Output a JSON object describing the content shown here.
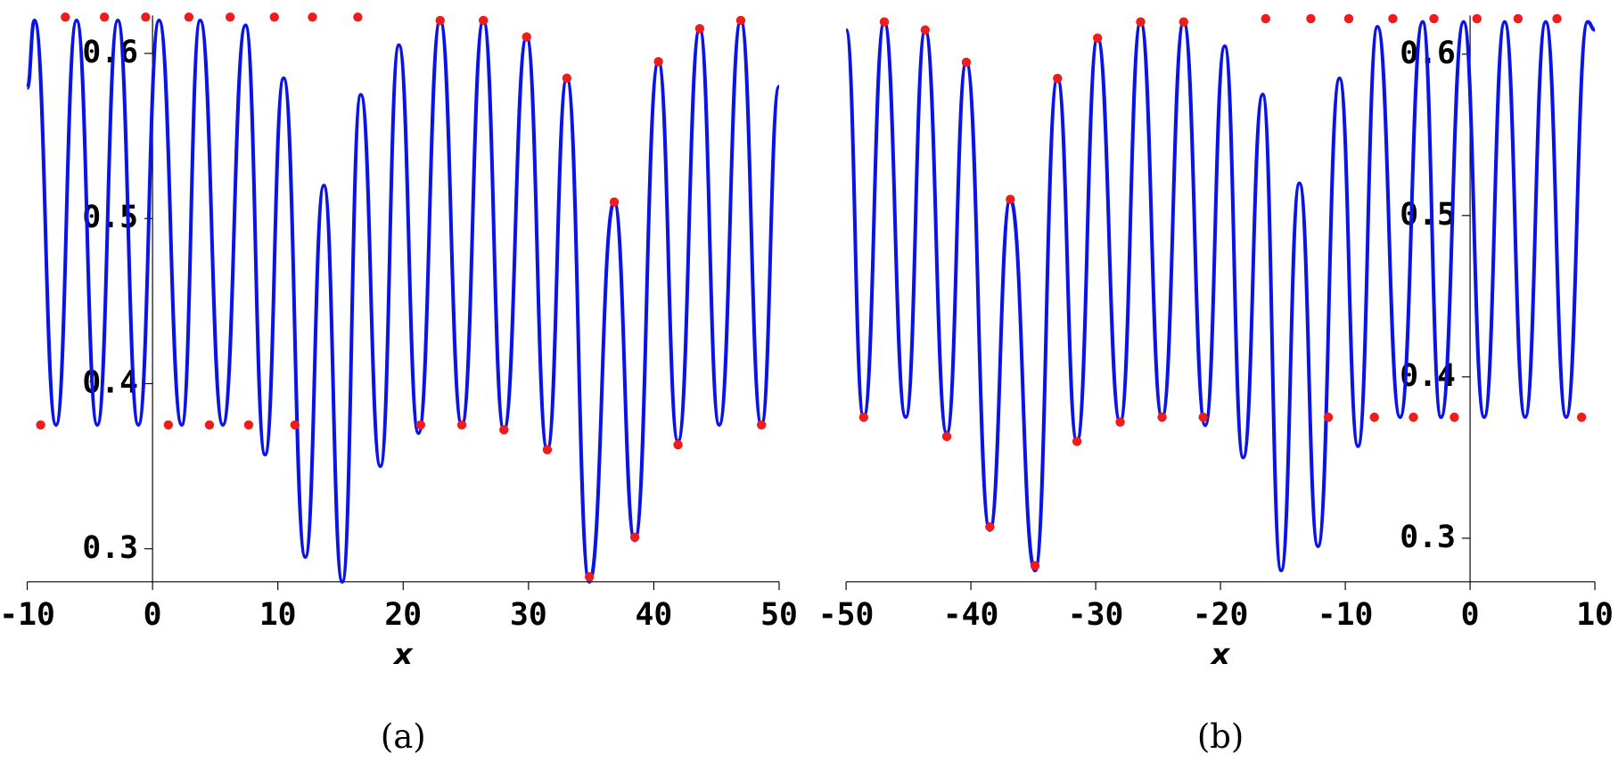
{
  "chart_data": [
    {
      "type": "line",
      "caption": "(a)",
      "x_label": "x",
      "xlim": [
        -10,
        50
      ],
      "xticks": [
        -10,
        0,
        10,
        20,
        30,
        40,
        50
      ],
      "ylim": [
        0.28,
        0.623
      ],
      "yticks": [
        0.3,
        0.4,
        0.5,
        0.6
      ],
      "series": [
        {
          "color": "#0a14e6",
          "x": [
            -10,
            -9.42,
            -7.7,
            -6.06,
            -4.41,
            -2.77,
            -1.13,
            0.52,
            2.33,
            3.8,
            5.61,
            7.42,
            8.98,
            10.46,
            12.19,
            13.67,
            15.14,
            16.62,
            18.18,
            19.66,
            21.22,
            22.95,
            24.68,
            26.4,
            28.04,
            29.85,
            31.5,
            33.06,
            34.86,
            36.84,
            38.48,
            40.37,
            41.93,
            43.66,
            45.22,
            46.94,
            48.59,
            50
          ],
          "values": [
            0.579,
            0.62,
            0.375,
            0.62,
            0.375,
            0.62,
            0.375,
            0.62,
            0.375,
            0.62,
            0.375,
            0.617,
            0.357,
            0.585,
            0.295,
            0.52,
            0.28,
            0.575,
            0.35,
            0.605,
            0.37,
            0.62,
            0.375,
            0.62,
            0.372,
            0.61,
            0.36,
            0.585,
            0.28,
            0.51,
            0.305,
            0.595,
            0.365,
            0.615,
            0.375,
            0.62,
            0.375,
            0.58
          ]
        },
        {
          "color": "#ee1c1c",
          "marker": "circle",
          "x": [
            -8.93,
            -6.96,
            -3.84,
            -0.55,
            1.26,
            2.9,
            4.54,
            6.19,
            7.67,
            9.72,
            11.36,
            12.76,
            16.38,
            21.39,
            22.95,
            24.68,
            26.4,
            28.04,
            29.85,
            31.5,
            33.06,
            34.86,
            36.84,
            38.48,
            40.37,
            41.93,
            43.66,
            46.94,
            48.59
          ],
          "values": [
            0.375,
            0.622,
            0.622,
            0.622,
            0.375,
            0.622,
            0.375,
            0.622,
            0.375,
            0.622,
            0.375,
            0.622,
            0.622,
            0.375,
            0.62,
            0.375,
            0.62,
            0.372,
            0.61,
            0.36,
            0.585,
            0.283,
            0.51,
            0.307,
            0.595,
            0.363,
            0.615,
            0.62,
            0.375
          ]
        }
      ]
    },
    {
      "type": "line",
      "caption": "(b)",
      "x_label": "x",
      "xlim": [
        -50,
        10
      ],
      "xticks": [
        -50,
        -40,
        -30,
        -20,
        -10,
        0,
        10
      ],
      "ylim": [
        0.273,
        0.624
      ],
      "yticks": [
        0.3,
        0.4,
        0.5,
        0.6
      ],
      "series": [
        {
          "color": "#0a14e6",
          "x": [
            -50,
            -48.59,
            -46.94,
            -45.22,
            -43.66,
            -41.93,
            -40.37,
            -38.48,
            -36.84,
            -34.86,
            -33.06,
            -31.5,
            -29.85,
            -28.04,
            -26.4,
            -24.68,
            -22.95,
            -21.22,
            -19.66,
            -18.18,
            -16.62,
            -15.14,
            -13.67,
            -12.19,
            -10.46,
            -8.98,
            -7.42,
            -5.61,
            -3.8,
            -2.33,
            -0.52,
            1.13,
            2.77,
            4.41,
            6.06,
            7.7,
            9.42,
            10
          ],
          "values": [
            0.615,
            0.375,
            0.62,
            0.375,
            0.615,
            0.365,
            0.595,
            0.305,
            0.51,
            0.28,
            0.585,
            0.36,
            0.61,
            0.372,
            0.62,
            0.375,
            0.62,
            0.37,
            0.605,
            0.35,
            0.575,
            0.28,
            0.52,
            0.295,
            0.585,
            0.357,
            0.617,
            0.375,
            0.62,
            0.375,
            0.62,
            0.375,
            0.62,
            0.375,
            0.62,
            0.375,
            0.62,
            0.615
          ]
        },
        {
          "color": "#ee1c1c",
          "marker": "circle",
          "x": [
            -48.59,
            -46.94,
            -43.66,
            -41.93,
            -40.37,
            -38.48,
            -36.84,
            -34.86,
            -33.06,
            -31.5,
            -29.85,
            -28.04,
            -26.4,
            -24.68,
            -22.95,
            -21.39,
            -16.38,
            -12.76,
            -11.36,
            -9.72,
            -7.67,
            -6.19,
            -4.54,
            -2.9,
            -1.26,
            0.55,
            3.84,
            6.96,
            8.93
          ],
          "values": [
            0.375,
            0.62,
            0.615,
            0.363,
            0.595,
            0.307,
            0.51,
            0.283,
            0.585,
            0.36,
            0.61,
            0.372,
            0.62,
            0.375,
            0.62,
            0.375,
            0.622,
            0.622,
            0.375,
            0.622,
            0.375,
            0.622,
            0.375,
            0.622,
            0.375,
            0.622,
            0.622,
            0.622,
            0.375
          ]
        }
      ]
    }
  ]
}
